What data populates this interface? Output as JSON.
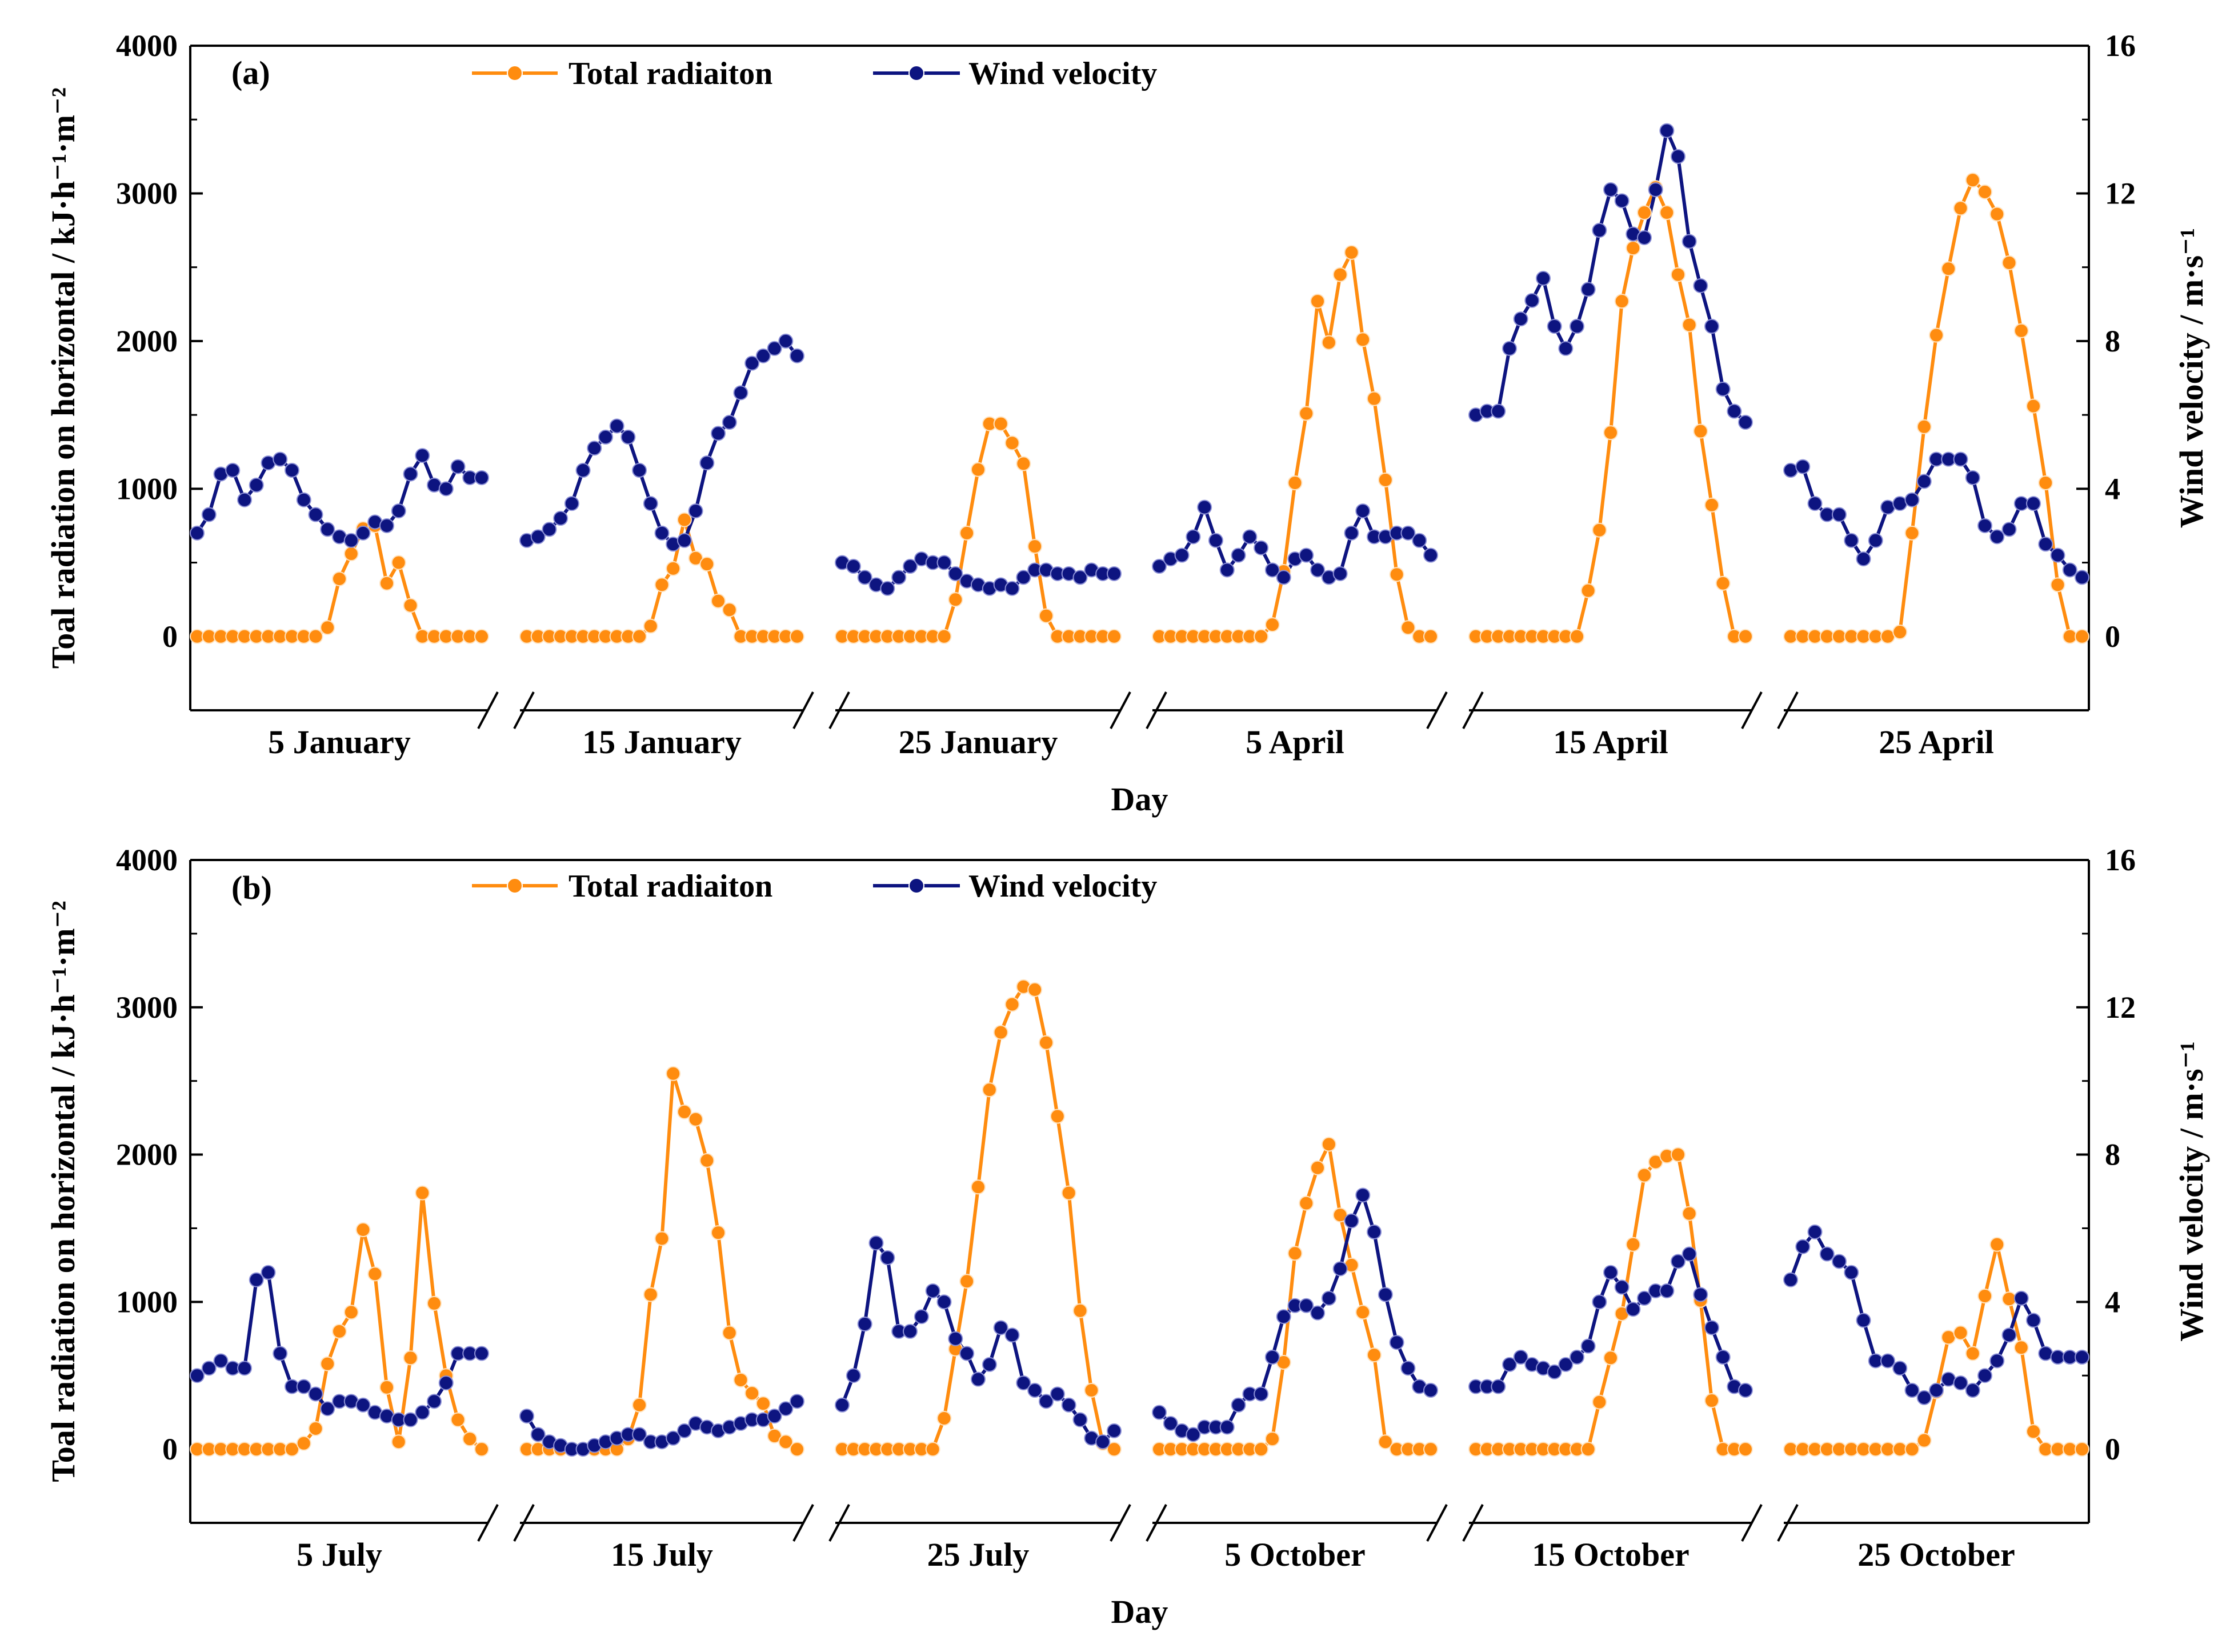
{
  "chart_data": [
    {
      "type": "line",
      "panel_label": "(a)",
      "legend": [
        "Total radiaiton",
        "Wind velocity"
      ],
      "ylabel_left": "Toal radiation on horizontal / kJ·h⁻¹·m⁻²",
      "ylabel_right": "Wind velocity / m·s⁻¹",
      "xlabel": "Day",
      "ylim_left": [
        -500,
        4000
      ],
      "ylim_right": [
        -2,
        16
      ],
      "yticks_left": [
        "0",
        "1000",
        "2000",
        "3000",
        "4000"
      ],
      "yticks_right": [
        "0",
        "4",
        "8",
        "12",
        "16"
      ],
      "days": [
        {
          "label": "5 January",
          "radiation": [
            0,
            0,
            0,
            0,
            0,
            0,
            0,
            0,
            0,
            0,
            0,
            60,
            390,
            560,
            730,
            750,
            360,
            500,
            210,
            0,
            0,
            0,
            0,
            0,
            0
          ],
          "wind": [
            2.8,
            3.3,
            4.4,
            4.5,
            3.7,
            4.1,
            4.7,
            4.8,
            4.5,
            3.7,
            3.3,
            2.9,
            2.7,
            2.6,
            2.8,
            3.1,
            3.0,
            3.4,
            4.4,
            4.9,
            4.1,
            4.0,
            4.6,
            4.3,
            4.3
          ]
        },
        {
          "label": "15 January",
          "radiation": [
            0,
            0,
            0,
            0,
            0,
            0,
            0,
            0,
            0,
            0,
            0,
            70,
            350,
            460,
            790,
            530,
            490,
            240,
            180,
            0,
            0,
            0,
            0,
            0,
            0
          ],
          "wind": [
            2.6,
            2.7,
            2.9,
            3.2,
            3.6,
            4.5,
            5.1,
            5.4,
            5.7,
            5.4,
            4.5,
            3.6,
            2.8,
            2.5,
            2.6,
            3.4,
            4.7,
            5.5,
            5.8,
            6.6,
            7.4,
            7.6,
            7.8,
            8.0,
            7.6
          ]
        },
        {
          "label": "25 January",
          "radiation": [
            0,
            0,
            0,
            0,
            0,
            0,
            0,
            0,
            0,
            0,
            250,
            700,
            1130,
            1440,
            1440,
            1310,
            1170,
            610,
            140,
            0,
            0,
            0,
            0,
            0,
            0
          ],
          "wind": [
            2.0,
            1.9,
            1.6,
            1.4,
            1.3,
            1.6,
            1.9,
            2.1,
            2.0,
            2.0,
            1.7,
            1.5,
            1.4,
            1.3,
            1.4,
            1.3,
            1.6,
            1.8,
            1.8,
            1.7,
            1.7,
            1.6,
            1.8,
            1.7,
            1.7
          ]
        },
        {
          "label": "5 April",
          "radiation": [
            0,
            0,
            0,
            0,
            0,
            0,
            0,
            0,
            0,
            0,
            80,
            440,
            1040,
            1510,
            2270,
            1990,
            2450,
            2600,
            2010,
            1610,
            1060,
            420,
            60,
            0,
            0
          ],
          "wind": [
            1.9,
            2.1,
            2.2,
            2.7,
            3.5,
            2.6,
            1.8,
            2.2,
            2.7,
            2.4,
            1.8,
            1.6,
            2.1,
            2.2,
            1.8,
            1.6,
            1.7,
            2.8,
            3.4,
            2.7,
            2.7,
            2.8,
            2.8,
            2.6,
            2.2
          ]
        },
        {
          "label": "15 April",
          "radiation": [
            0,
            0,
            0,
            0,
            0,
            0,
            0,
            0,
            0,
            0,
            310,
            720,
            1380,
            2270,
            2630,
            2870,
            3040,
            2870,
            2450,
            2110,
            1390,
            890,
            360,
            0,
            0
          ],
          "wind": [
            6.0,
            6.1,
            6.1,
            7.8,
            8.6,
            9.1,
            9.7,
            8.4,
            7.8,
            8.4,
            9.4,
            11.0,
            12.1,
            11.8,
            10.9,
            10.8,
            12.1,
            13.7,
            13.0,
            10.7,
            9.5,
            8.4,
            6.7,
            6.1,
            5.8
          ]
        },
        {
          "label": "25 April",
          "radiation": [
            0,
            0,
            0,
            0,
            0,
            0,
            0,
            0,
            0,
            30,
            700,
            1420,
            2040,
            2490,
            2900,
            3090,
            3010,
            2860,
            2530,
            2070,
            1560,
            1040,
            350,
            0,
            0
          ],
          "wind": [
            4.5,
            4.6,
            3.6,
            3.3,
            3.3,
            2.6,
            2.1,
            2.6,
            3.5,
            3.6,
            3.7,
            4.2,
            4.8,
            4.8,
            4.8,
            4.3,
            3.0,
            2.7,
            2.9,
            3.6,
            3.6,
            2.5,
            2.2,
            1.8,
            1.6
          ]
        }
      ]
    },
    {
      "type": "line",
      "panel_label": "(b)",
      "legend": [
        "Total radiaiton",
        "Wind velocity"
      ],
      "ylabel_left": "Toal radiation on horizontal / kJ·h⁻¹·m⁻²",
      "ylabel_right": "Wind velocity / m·s⁻¹",
      "xlabel": "Day",
      "ylim_left": [
        -500,
        4000
      ],
      "ylim_right": [
        -2,
        16
      ],
      "yticks_left": [
        "0",
        "1000",
        "2000",
        "3000",
        "4000"
      ],
      "yticks_right": [
        "0",
        "4",
        "8",
        "12",
        "16"
      ],
      "days": [
        {
          "label": "5 July",
          "radiation": [
            0,
            0,
            0,
            0,
            0,
            0,
            0,
            0,
            0,
            40,
            140,
            580,
            800,
            930,
            1490,
            1190,
            420,
            50,
            620,
            1740,
            990,
            500,
            200,
            70,
            0
          ],
          "wind": [
            2.0,
            2.2,
            2.4,
            2.2,
            2.2,
            4.6,
            4.8,
            2.6,
            1.7,
            1.7,
            1.5,
            1.1,
            1.3,
            1.3,
            1.2,
            1.0,
            0.9,
            0.8,
            0.8,
            1.0,
            1.3,
            1.8,
            2.6,
            2.6,
            2.6
          ]
        },
        {
          "label": "15 July",
          "radiation": [
            0,
            0,
            0,
            0,
            0,
            0,
            0,
            0,
            0,
            70,
            300,
            1050,
            1430,
            2550,
            2290,
            2240,
            1960,
            1470,
            790,
            470,
            380,
            310,
            90,
            50,
            0
          ],
          "wind": [
            0.9,
            0.4,
            0.2,
            0.1,
            0.0,
            0.0,
            0.1,
            0.2,
            0.3,
            0.4,
            0.4,
            0.2,
            0.2,
            0.3,
            0.5,
            0.7,
            0.6,
            0.5,
            0.6,
            0.7,
            0.8,
            0.8,
            0.9,
            1.1,
            1.3
          ]
        },
        {
          "label": "25 July",
          "radiation": [
            0,
            0,
            0,
            0,
            0,
            0,
            0,
            0,
            0,
            210,
            680,
            1140,
            1780,
            2440,
            2830,
            3020,
            3140,
            3120,
            2760,
            2260,
            1740,
            940,
            400,
            40,
            0
          ],
          "wind": [
            1.2,
            2.0,
            3.4,
            5.6,
            5.2,
            3.2,
            3.2,
            3.6,
            4.3,
            4.0,
            3.0,
            2.6,
            1.9,
            2.3,
            3.3,
            3.1,
            1.8,
            1.6,
            1.3,
            1.5,
            1.2,
            0.8,
            0.3,
            0.2,
            0.5
          ]
        },
        {
          "label": "5 October",
          "radiation": [
            0,
            0,
            0,
            0,
            0,
            0,
            0,
            0,
            0,
            0,
            70,
            590,
            1330,
            1670,
            1910,
            2070,
            1590,
            1250,
            930,
            640,
            50,
            0,
            0,
            0,
            0
          ],
          "wind": [
            1.0,
            0.7,
            0.5,
            0.4,
            0.6,
            0.6,
            0.6,
            1.2,
            1.5,
            1.5,
            2.5,
            3.6,
            3.9,
            3.9,
            3.7,
            4.1,
            4.9,
            6.2,
            6.9,
            5.9,
            4.2,
            2.9,
            2.2,
            1.7,
            1.6
          ]
        },
        {
          "label": "15 October",
          "radiation": [
            0,
            0,
            0,
            0,
            0,
            0,
            0,
            0,
            0,
            0,
            0,
            320,
            620,
            920,
            1390,
            1860,
            1950,
            1990,
            2000,
            1600,
            1010,
            330,
            0,
            0,
            0
          ],
          "wind": [
            1.7,
            1.7,
            1.7,
            2.3,
            2.5,
            2.3,
            2.2,
            2.1,
            2.3,
            2.5,
            2.8,
            4.0,
            4.8,
            4.4,
            3.8,
            4.1,
            4.3,
            4.3,
            5.1,
            5.3,
            4.2,
            3.3,
            2.5,
            1.7,
            1.6
          ]
        },
        {
          "label": "25 October",
          "radiation": [
            0,
            0,
            0,
            0,
            0,
            0,
            0,
            0,
            0,
            0,
            0,
            60,
            390,
            760,
            790,
            650,
            1040,
            1390,
            1020,
            690,
            120,
            0,
            0,
            0,
            0
          ],
          "wind": [
            4.6,
            5.5,
            5.9,
            5.3,
            5.1,
            4.8,
            3.5,
            2.4,
            2.4,
            2.2,
            1.6,
            1.4,
            1.6,
            1.9,
            1.8,
            1.6,
            2.0,
            2.4,
            3.1,
            4.1,
            3.5,
            2.6,
            2.5,
            2.5,
            2.5
          ]
        }
      ]
    }
  ],
  "colors": {
    "radiation": "#ff8c0f",
    "wind": "#0d1480",
    "axis": "#000000"
  }
}
